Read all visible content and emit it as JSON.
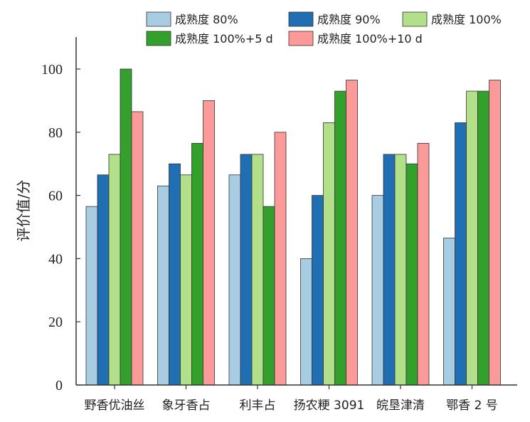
{
  "chart_data": {
    "type": "bar",
    "title": "",
    "xlabel": "",
    "ylabel": "评价值/分",
    "ylim": [
      0,
      110
    ],
    "yticks": [
      0,
      20,
      40,
      60,
      80,
      100
    ],
    "grid": false,
    "legend_position": "top",
    "categories": [
      "野香优油丝",
      "象牙香占",
      "利丰占",
      "扬农粳 3091",
      "皖垦津清",
      "鄂香 2 号"
    ],
    "series": [
      {
        "name": "成熟度 80%",
        "color": "#a8cde2",
        "values": [
          56.5,
          63,
          66.5,
          40,
          60,
          46.5
        ]
      },
      {
        "name": "成熟度 90%",
        "color": "#1f6fb2",
        "values": [
          66.5,
          70,
          73,
          60,
          73,
          83
        ]
      },
      {
        "name": "成熟度 100%",
        "color": "#b2df8a",
        "values": [
          73,
          66.5,
          73,
          83,
          73,
          93
        ]
      },
      {
        "name": "成熟度 100%+5 d",
        "color": "#33a02c",
        "values": [
          100,
          76.5,
          56.5,
          93,
          70,
          93
        ]
      },
      {
        "name": "成熟度 100%+10 d",
        "color": "#fb9a99",
        "values": [
          86.5,
          90,
          80,
          96.5,
          76.5,
          96.5
        ]
      }
    ]
  }
}
